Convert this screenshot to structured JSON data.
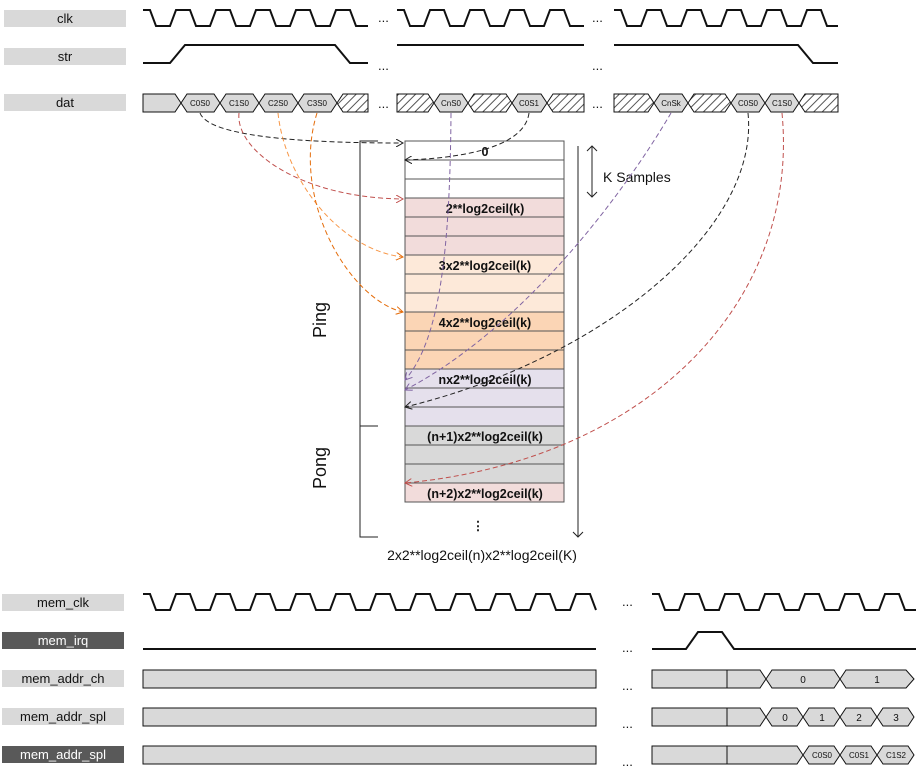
{
  "signals_top": {
    "clk": "clk",
    "str": "str",
    "dat": "dat"
  },
  "dat_bus": {
    "group1": [
      "C0S0",
      "C1S0",
      "C2S0",
      "C3S0"
    ],
    "group2": [
      "CnS0",
      "C0S1"
    ],
    "group3": [
      "CnSk",
      "C0S0",
      "C1S0"
    ]
  },
  "ellipsis": "...",
  "memory": {
    "rows": {
      "r0": "0",
      "r1": "2**log2ceil(k)",
      "r2": "3x2**log2ceil(k)",
      "r3": "4x2**log2ceil(k)",
      "r4": "nx2**log2ceil(k)",
      "r5": "(n+1)x2**log2ceil(k)",
      "r6": "(n+2)x2**log2ceil(k)"
    },
    "vdots": "⋮",
    "k_samples": "K Samples",
    "ping": "Ping",
    "pong": "Pong",
    "total": "2x2**log2ceil(n)x2**log2ceil(K)",
    "colors": {
      "white": "#ffffff",
      "pink": "#f2dcdb",
      "peach": "#fde9d9",
      "orange": "#fbd5b5",
      "lavender": "#e5e0ec",
      "gray": "#d9d9d9"
    }
  },
  "signals_bottom": {
    "mem_clk": "mem_clk",
    "mem_irq": "mem_irq",
    "mem_addr_ch": "mem_addr_ch",
    "mem_addr_spl": "mem_addr_spl",
    "mem_addr_spl2": "mem_addr_spl"
  },
  "bottom_bus": {
    "ch": [
      "0",
      "1"
    ],
    "spl": [
      "0",
      "1",
      "2",
      "3"
    ],
    "spl2": [
      "C0S0",
      "C0S1",
      "C1S2"
    ]
  }
}
